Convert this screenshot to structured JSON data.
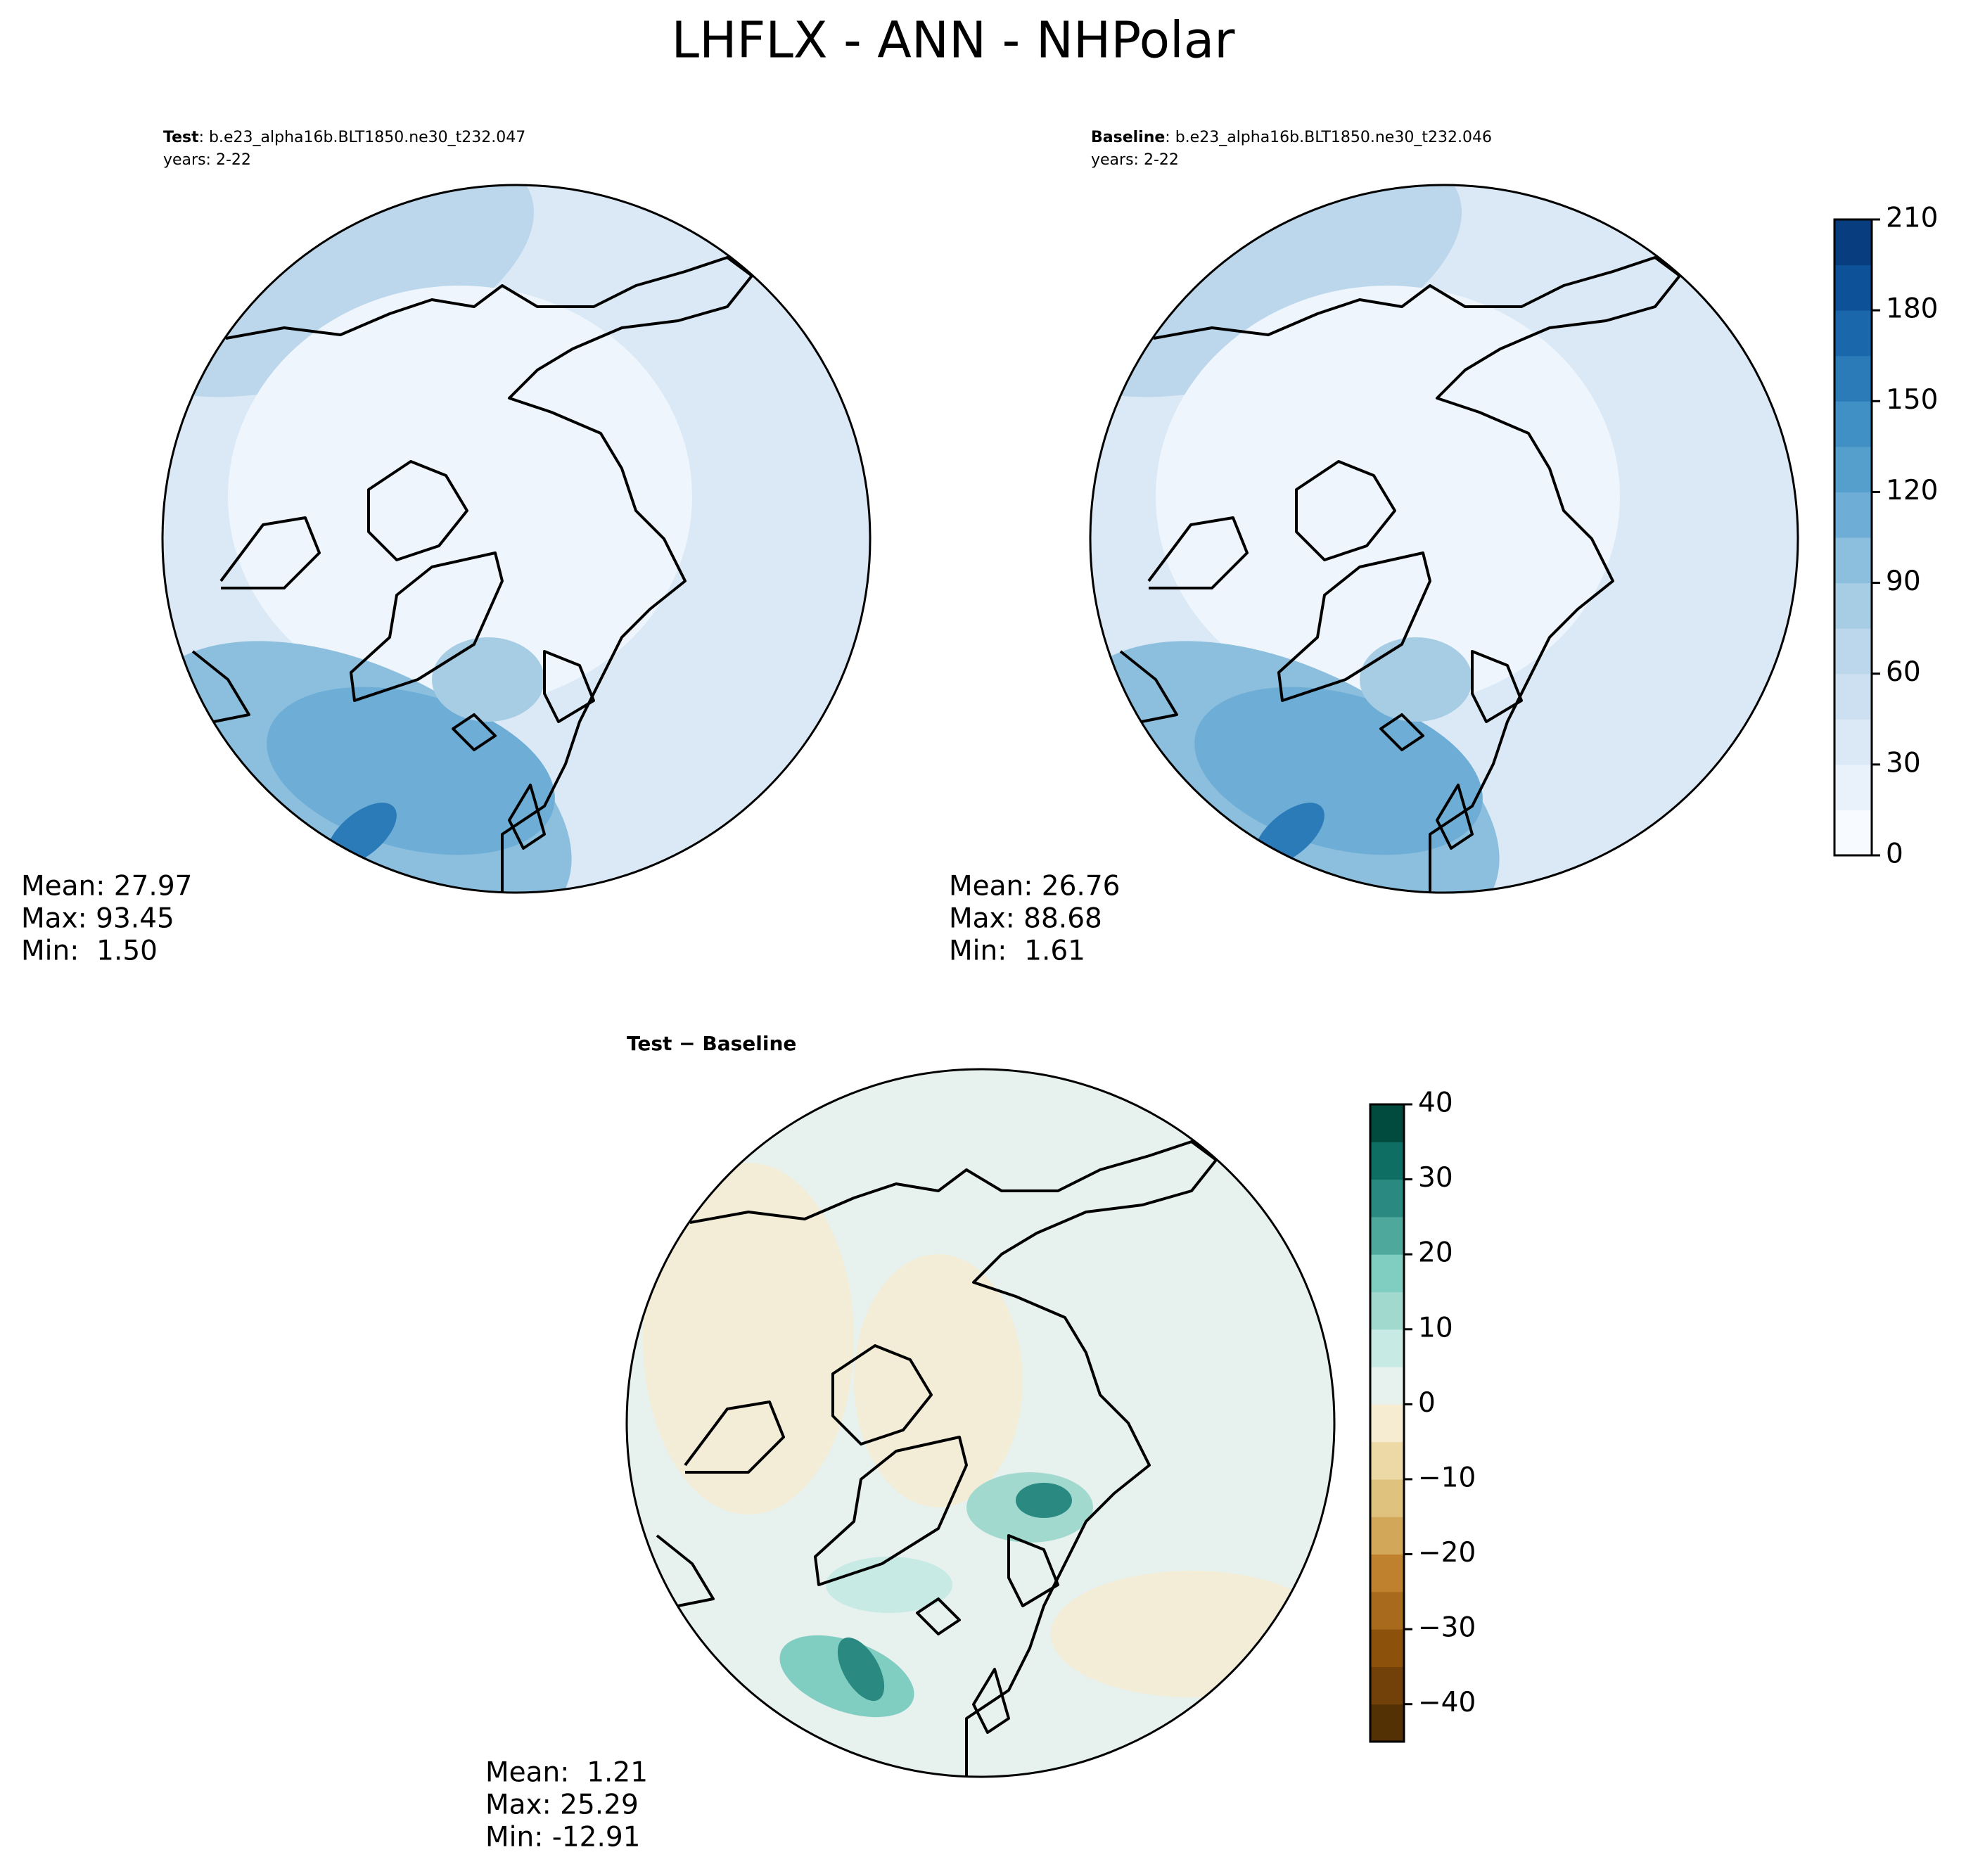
{
  "title": "LHFLX - ANN - NHPolar",
  "panels": [
    {
      "label": "Test",
      "case": ": b.e23_alpha16b.BLT1850.ne30_t232.047",
      "years": "years: 2-22",
      "stats": [
        "Mean: 27.97",
        "Max: 93.45",
        "Min:  1.50"
      ]
    },
    {
      "label": "Baseline",
      "case": ": b.e23_alpha16b.BLT1850.ne30_t232.046",
      "years": "years: 2-22",
      "stats": [
        "Mean: 26.76",
        "Max: 88.68",
        "Min:  1.61"
      ]
    },
    {
      "label": "Test − Baseline",
      "stats": [
        "Mean:  1.21",
        "Max: 25.29",
        "Min: -12.91"
      ]
    }
  ],
  "colorbars": [
    {
      "range": [
        0,
        210
      ],
      "ticks": [
        0,
        30,
        60,
        90,
        120,
        150,
        180,
        210
      ],
      "colors": [
        "#f7fbff",
        "#e9f2fb",
        "#dbe9f6",
        "#cde0f2",
        "#bcd7eb",
        "#a6cde4",
        "#8cbfdd",
        "#6eaed6",
        "#559fcd",
        "#4090c5",
        "#2c7bb9",
        "#1b67ab",
        "#0d5299",
        "#083e7f"
      ]
    },
    {
      "range": [
        -45,
        40
      ],
      "ticks": [
        {
          "value": -40,
          "label": "−40"
        },
        {
          "value": -30,
          "label": "−30"
        },
        {
          "value": -20,
          "label": "−20"
        },
        {
          "value": -10,
          "label": "−10"
        },
        0,
        10,
        20,
        30,
        40
      ],
      "colors": [
        "#543005",
        "#714109",
        "#8c510a",
        "#a86a1d",
        "#bf812d",
        "#d2a75a",
        "#dfc27d",
        "#ecd9a6",
        "#f6ecd2",
        "#e7f1ee",
        "#c7eae5",
        "#a1d9cf",
        "#80cdc1",
        "#4fa89c",
        "#2a8a82",
        "#0f6e64",
        "#004a3e"
      ]
    }
  ]
}
